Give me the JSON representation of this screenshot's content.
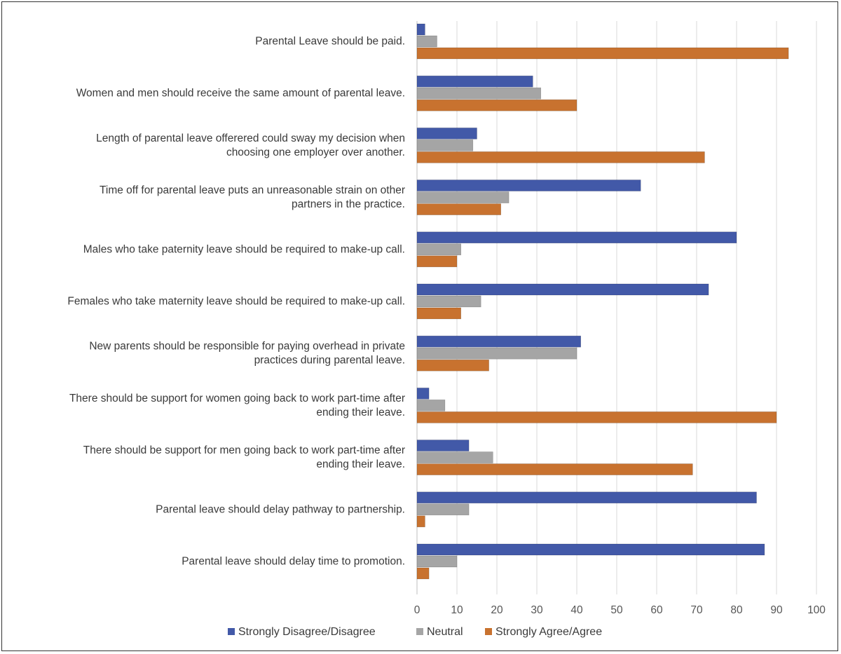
{
  "chart_data": {
    "type": "bar",
    "orientation": "horizontal",
    "categories": [
      [
        "Parental Leave should be paid."
      ],
      [
        "Women and men should receive the same amount of parental leave."
      ],
      [
        "Length of parental leave offerered could sway my decision when",
        "choosing one employer over another."
      ],
      [
        "Time off for parental leave puts an unreasonable strain on other",
        "partners in the practice."
      ],
      [
        "Males who take paternity leave should be required to make-up call."
      ],
      [
        "Females who take maternity leave should be required to make-up call."
      ],
      [
        "New parents should be responsible for paying overhead in private",
        "practices during parental leave."
      ],
      [
        "There should be support for women going back to work part-time after",
        "ending their leave."
      ],
      [
        "There should be support for men going back to work part-time after",
        "ending their leave."
      ],
      [
        "Parental leave should delay pathway to partnership."
      ],
      [
        "Parental leave should delay time to promotion."
      ]
    ],
    "series": [
      {
        "name": "Strongly Disagree/Disagree",
        "color": "#4259a8",
        "values": [
          2,
          29,
          15,
          56,
          80,
          73,
          41,
          3,
          13,
          85,
          87
        ]
      },
      {
        "name": "Neutral",
        "color": "#a5a5a5",
        "values": [
          5,
          31,
          14,
          23,
          11,
          16,
          40,
          7,
          19,
          13,
          10
        ]
      },
      {
        "name": "Strongly Agree/Agree",
        "color": "#c8722f",
        "values": [
          93,
          40,
          72,
          21,
          10,
          11,
          18,
          90,
          69,
          2,
          3
        ]
      }
    ],
    "xlim": [
      0,
      100
    ],
    "xticks": [
      "0",
      "10",
      "20",
      "30",
      "40",
      "50",
      "60",
      "70",
      "80",
      "90",
      "100"
    ],
    "grid": true,
    "legend": "bottom"
  }
}
